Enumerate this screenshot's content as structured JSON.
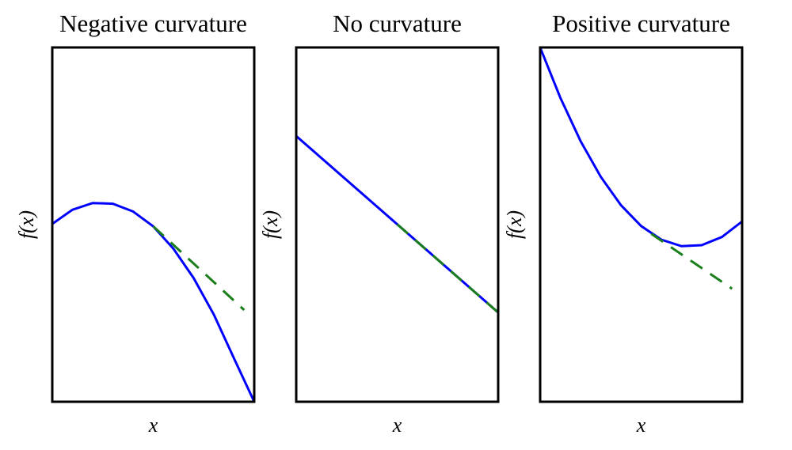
{
  "chart_data": [
    {
      "type": "line",
      "title": "Negative curvature",
      "xlabel": "x",
      "ylabel": "f(x)",
      "xlim": [
        0,
        1
      ],
      "ylim": [
        0,
        1
      ],
      "series": [
        {
          "color": "#0000ff",
          "dashed": false,
          "x": [
            0,
            0.1,
            0.2,
            0.3,
            0.4,
            0.5,
            0.6,
            0.7,
            0.8,
            0.9,
            1
          ],
          "values": [
            0.502,
            0.542,
            0.561,
            0.559,
            0.537,
            0.495,
            0.432,
            0.349,
            0.246,
            0.122,
            0
          ]
        },
        {
          "color": "#1a7f1a",
          "dashed": true,
          "x": [
            0.5,
            0.95
          ],
          "values": [
            0.495,
            0.259
          ]
        }
      ]
    },
    {
      "type": "line",
      "title": "No curvature",
      "xlabel": "x",
      "ylabel": "f(x)",
      "xlim": [
        0,
        1
      ],
      "ylim": [
        0,
        1
      ],
      "series": [
        {
          "color": "#0000ff",
          "dashed": false,
          "x": [
            0,
            1
          ],
          "values": [
            0.75,
            0.252
          ]
        },
        {
          "color": "#1a7f1a",
          "dashed": true,
          "x": [
            0.5,
            1
          ],
          "values": [
            0.501,
            0.252
          ]
        }
      ]
    },
    {
      "type": "line",
      "title": "Positive curvature",
      "xlabel": "x",
      "ylabel": "f(x)",
      "xlim": [
        0,
        1
      ],
      "ylim": [
        0,
        1
      ],
      "series": [
        {
          "color": "#0000ff",
          "dashed": false,
          "x": [
            0,
            0.1,
            0.2,
            0.3,
            0.4,
            0.5,
            0.6,
            0.7,
            0.8,
            0.9,
            1
          ],
          "values": [
            1,
            0.858,
            0.736,
            0.635,
            0.555,
            0.496,
            0.4575,
            0.439,
            0.442,
            0.465,
            0.509
          ]
        },
        {
          "color": "#1a7f1a",
          "dashed": true,
          "x": [
            0.55,
            0.95
          ],
          "values": [
            0.474,
            0.319
          ]
        }
      ]
    }
  ]
}
